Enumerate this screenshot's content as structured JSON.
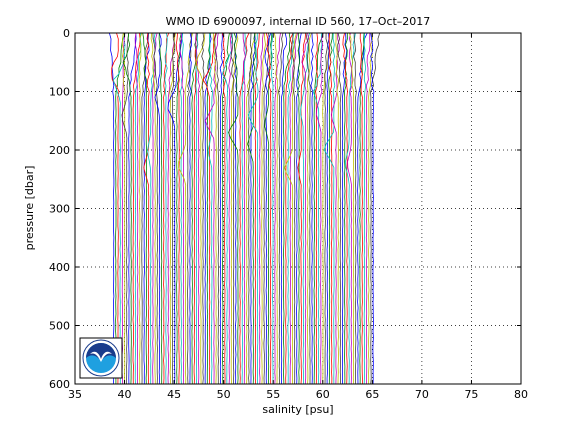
{
  "chart_data": {
    "type": "line",
    "title": "WMO ID 6900097, internal ID 560, 17–Oct–2017",
    "xlabel": "salinity [psu]",
    "ylabel": "pressure [dbar]",
    "xlim": [
      35,
      80
    ],
    "ylim": [
      0,
      600
    ],
    "y_reversed": true,
    "x_ticks": [
      "35",
      "40",
      "45",
      "50",
      "55",
      "60",
      "65",
      "70",
      "75",
      "80"
    ],
    "y_ticks": [
      "0",
      "100",
      "200",
      "300",
      "400",
      "500",
      "600"
    ],
    "grid": true,
    "series_description": "approx. 120 stacked salinity profiles, each offset by about 0.22 psu, spanning roughly 38.8 to 66.5 psu; profiles extend from 0 to about 600 dbar",
    "profile_count": 120,
    "profile_offset_psu": 0.22,
    "first_profile_base_psu": 38.9,
    "series_colors": [
      "#0000ff",
      "#008000",
      "#ff0000",
      "#00bfbf",
      "#bf00bf",
      "#bfbf00",
      "#404040"
    ]
  },
  "logo": {
    "text": "NOAA",
    "colors": {
      "outer": "#ffffff",
      "upper": "#1a3c8c",
      "lower": "#1fa0e0",
      "bird": "#ffffff"
    }
  }
}
